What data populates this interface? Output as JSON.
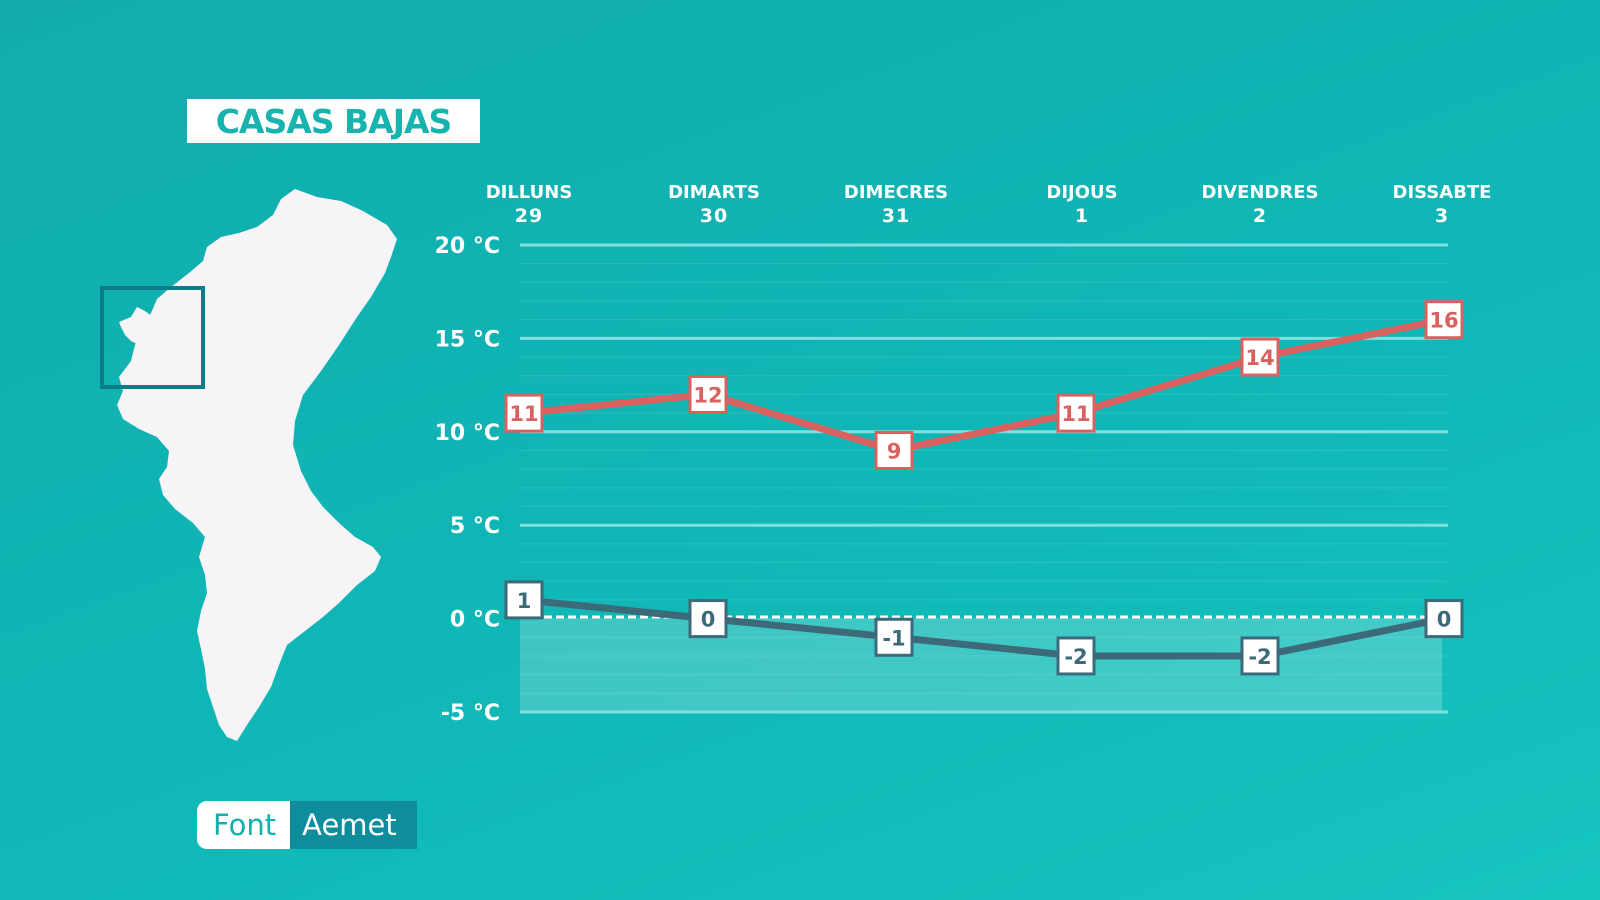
{
  "location": {
    "name": "CASAS BAJAS"
  },
  "source": {
    "key": "Font",
    "value": "Aemet"
  },
  "colors": {
    "max_line": "#d9615f",
    "min_line": "#3c6a78",
    "grid": "#7fe0dd",
    "text": "#ffffff"
  },
  "chart_data": {
    "type": "line",
    "categories": [
      {
        "day": "DILLUNS",
        "date": "29"
      },
      {
        "day": "DIMARTS",
        "date": "30"
      },
      {
        "day": "DIMECRES",
        "date": "31"
      },
      {
        "day": "DIJOUS",
        "date": "1"
      },
      {
        "day": "DIVENDRES",
        "date": "2"
      },
      {
        "day": "DISSABTE",
        "date": "3"
      }
    ],
    "series": [
      {
        "values": [
          11,
          12,
          9,
          11,
          14,
          16
        ]
      },
      {
        "values": [
          1,
          0,
          -1,
          -2,
          -2,
          0
        ]
      }
    ],
    "yticks": [
      {
        "value": 20,
        "label": "20 °C"
      },
      {
        "value": 15,
        "label": "15 °C"
      },
      {
        "value": 10,
        "label": "10 °C"
      },
      {
        "value": 5,
        "label": "5 °C"
      },
      {
        "value": 0,
        "label": "0 °C"
      },
      {
        "value": -5,
        "label": "-5 °C"
      }
    ],
    "ylim": [
      -5,
      20
    ],
    "grid": true,
    "legend": "none"
  }
}
